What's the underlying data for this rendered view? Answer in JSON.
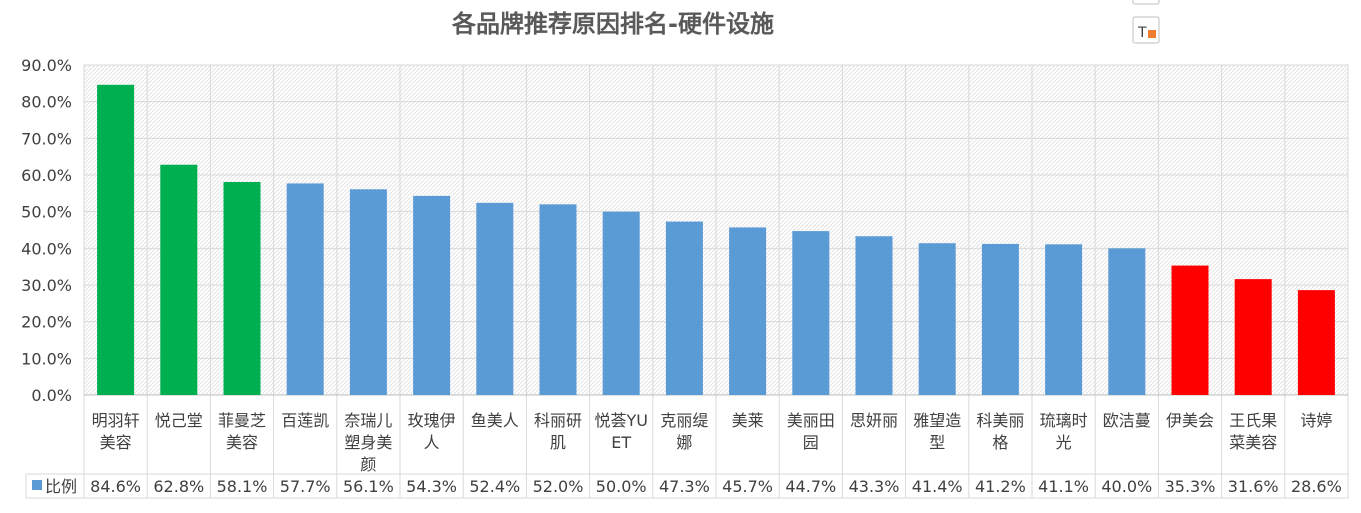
{
  "chart_data": {
    "type": "bar",
    "title": "各品牌推荐原因排名-硬件设施",
    "xlabel": "",
    "ylabel": "",
    "ylim": [
      0,
      90
    ],
    "ytick_step": 10,
    "value_format": "percent_1dp",
    "grid": true,
    "legend": "data-table-left",
    "categories": [
      [
        "明羽轩",
        "美容"
      ],
      [
        "悦己堂"
      ],
      [
        "菲曼芝",
        "美容"
      ],
      [
        "百莲凯"
      ],
      [
        "奈瑞儿",
        "塑身美",
        "颜"
      ],
      [
        "玫瑰伊",
        "人"
      ],
      [
        "鱼美人"
      ],
      [
        "科丽研",
        "肌"
      ],
      [
        "悦荟YU",
        "ET"
      ],
      [
        "克丽缇",
        "娜"
      ],
      [
        "美莱"
      ],
      [
        "美丽田",
        "园"
      ],
      [
        "思妍丽"
      ],
      [
        "雅望造",
        "型"
      ],
      [
        "科美丽",
        "格"
      ],
      [
        "琉璃时",
        "光"
      ],
      [
        "欧洁蔓"
      ],
      [
        "伊美会"
      ],
      [
        "王氏果",
        "菜美容"
      ],
      [
        "诗婷"
      ]
    ],
    "series": [
      {
        "name": "比例",
        "values": [
          84.6,
          62.8,
          58.1,
          57.7,
          56.1,
          54.3,
          52.4,
          52.0,
          50.0,
          47.3,
          45.7,
          44.7,
          43.3,
          41.4,
          41.2,
          41.1,
          40.0,
          35.3,
          31.6,
          28.6
        ],
        "value_labels": [
          "84.6%",
          "62.8%",
          "58.1%",
          "57.7%",
          "56.1%",
          "54.3%",
          "52.4%",
          "52.0%",
          "50.0%",
          "47.3%",
          "45.7%",
          "44.7%",
          "43.3%",
          "41.4%",
          "41.2%",
          "41.1%",
          "40.0%",
          "35.3%",
          "31.6%",
          "28.6%"
        ],
        "colors": [
          "#00B050",
          "#00B050",
          "#00B050",
          "#5B9BD5",
          "#5B9BD5",
          "#5B9BD5",
          "#5B9BD5",
          "#5B9BD5",
          "#5B9BD5",
          "#5B9BD5",
          "#5B9BD5",
          "#5B9BD5",
          "#5B9BD5",
          "#5B9BD5",
          "#5B9BD5",
          "#5B9BD5",
          "#5B9BD5",
          "#FF0000",
          "#FF0000",
          "#FF0000"
        ],
        "legend_color": "#5B9BD5"
      }
    ]
  },
  "colors": {
    "top": "#00B050",
    "middle": "#5B9BD5",
    "bottom": "#FF0000",
    "grid": "#D9D9D9",
    "text": "#404040"
  },
  "toolbar": {
    "format_icon": "text-format-icon"
  }
}
